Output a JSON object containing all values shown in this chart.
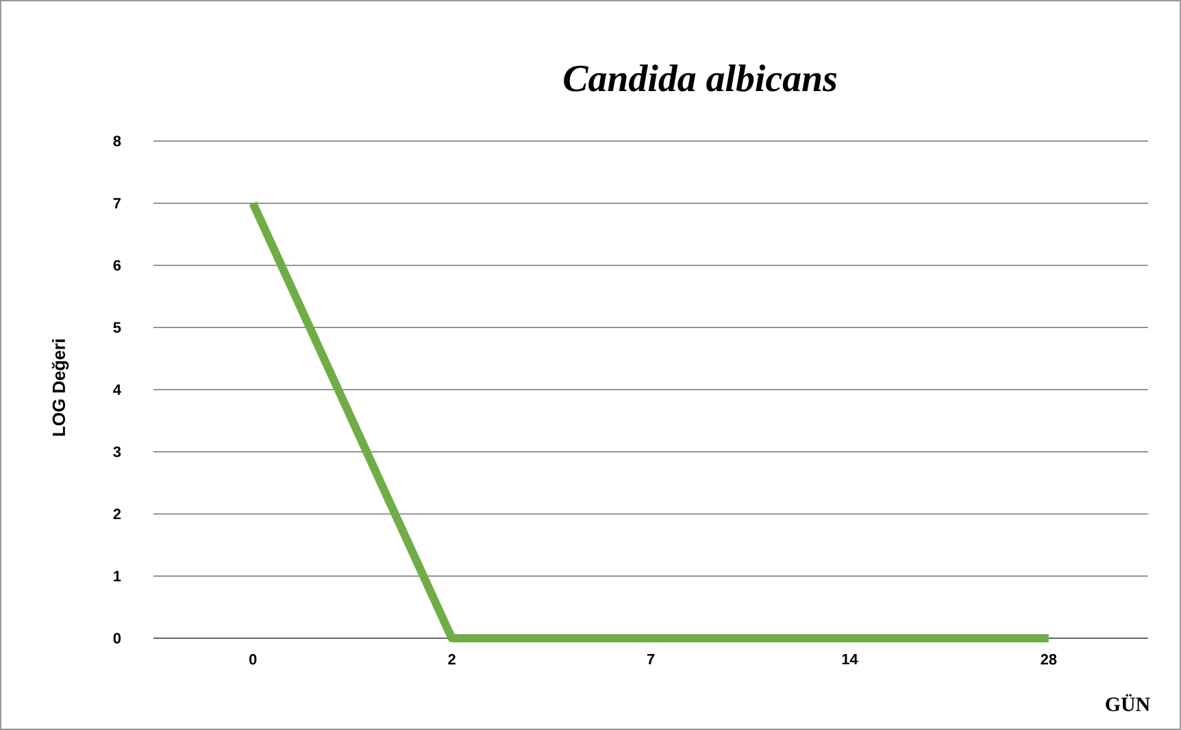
{
  "chart_data": {
    "type": "line",
    "title": "Candida albicans",
    "xlabel": "GÜN",
    "ylabel": "LOG Değeri",
    "categories": [
      "0",
      "2",
      "7",
      "14",
      "28"
    ],
    "series": [
      {
        "color": "#70ad47",
        "values": [
          7,
          0,
          0,
          0,
          0
        ]
      }
    ],
    "ylim": [
      0,
      8
    ],
    "yticks": [
      0,
      1,
      2,
      3,
      4,
      5,
      6,
      7,
      8
    ],
    "grid": "y"
  }
}
